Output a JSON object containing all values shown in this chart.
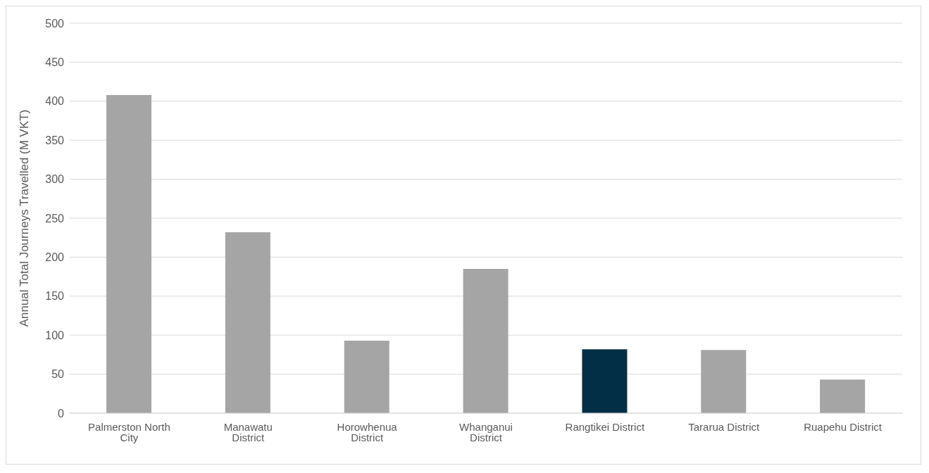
{
  "chart_data": {
    "type": "bar",
    "ylabel": "Annual Total Journeys Travelled (M VKT)",
    "categories": [
      "Palmerston North City",
      "Manawatu District",
      "Horowhenua District",
      "Whanganui District",
      "Rangtikei District",
      "Tararua District",
      "Ruapehu District"
    ],
    "values": [
      408,
      232,
      93,
      185,
      82,
      81,
      43
    ],
    "colors": [
      "#a5a5a5",
      "#a5a5a5",
      "#a5a5a5",
      "#a5a5a5",
      "#022f46",
      "#a5a5a5",
      "#a5a5a5"
    ],
    "ylim": [
      0,
      500
    ],
    "yticks": [
      0,
      50,
      100,
      150,
      200,
      250,
      300,
      350,
      400,
      450,
      500
    ],
    "grid": "y",
    "legend": false
  }
}
